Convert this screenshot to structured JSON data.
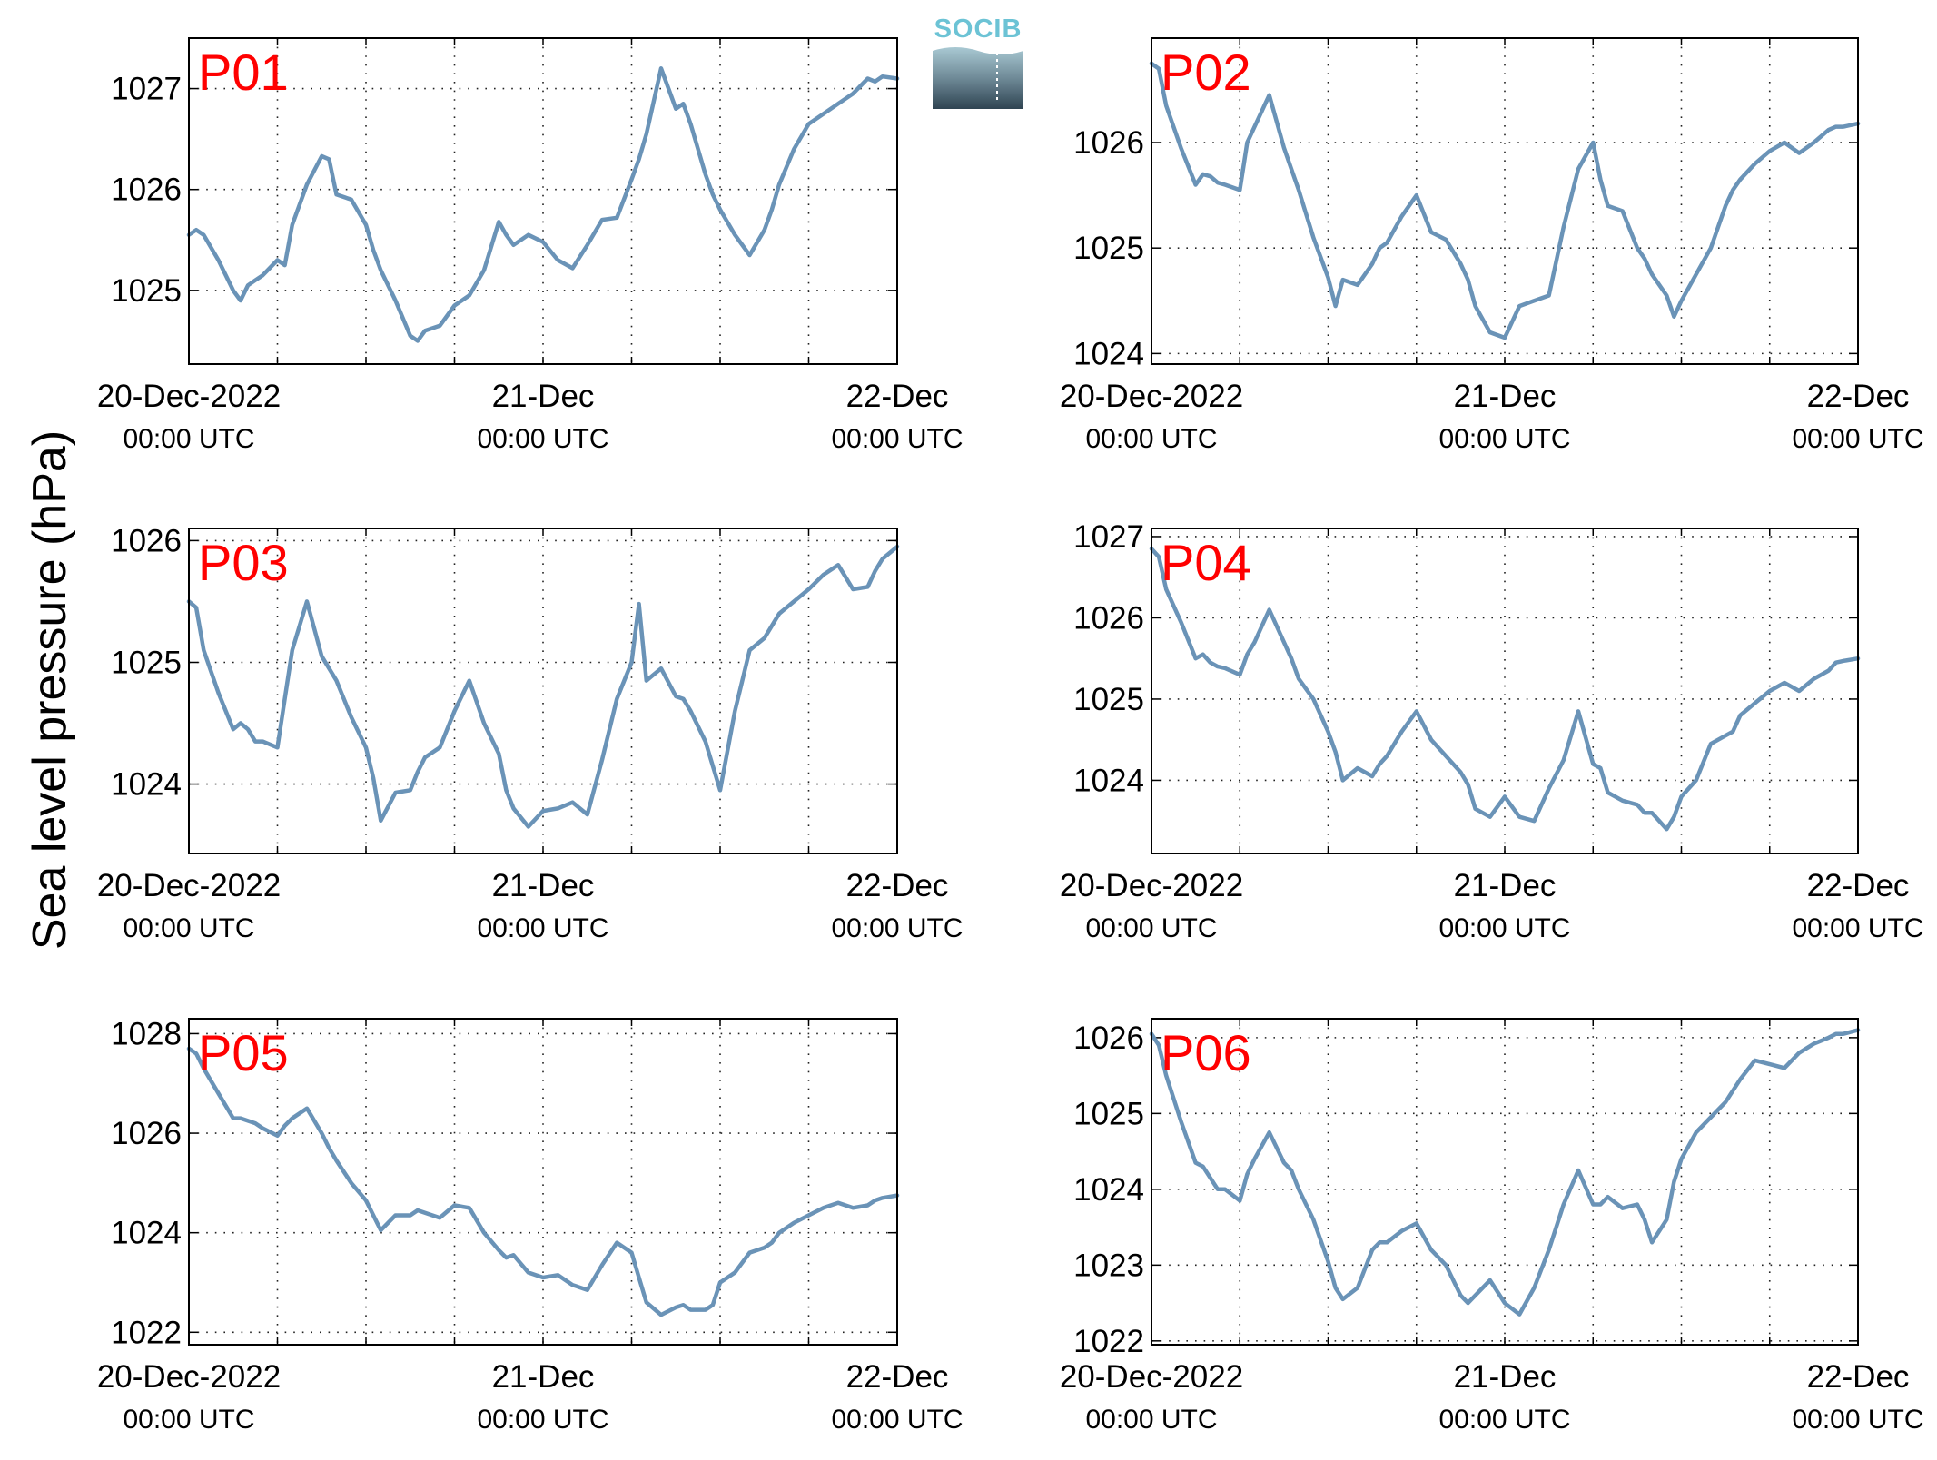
{
  "figure": {
    "ylabel": "Sea level pressure (hPa)",
    "logo_text": "SOCIB",
    "line_color": "#6a93b7",
    "label_color": "#ff0000",
    "grid": "dotted"
  },
  "chart_data": [
    {
      "type": "line",
      "title": "P01",
      "xtick_labels": [
        {
          "line1": "20-Dec-2022",
          "line2": "00:00 UTC"
        },
        {
          "line1": "21-Dec",
          "line2": "00:00 UTC"
        },
        {
          "line1": "22-Dec",
          "line2": "00:00 UTC"
        }
      ],
      "xlim": [
        0,
        48
      ],
      "ylim": [
        1024.27,
        1027.5
      ],
      "yticks": [
        1025,
        1026,
        1027
      ],
      "ytick_labels": [
        "1025",
        "1026",
        "1027"
      ],
      "x": [
        0,
        0.5,
        1,
        2,
        3,
        3.5,
        4,
        4.5,
        5,
        6,
        6.5,
        7,
        8,
        9,
        9.5,
        10,
        11,
        12,
        12.5,
        13,
        14,
        15,
        15.5,
        16,
        17,
        18,
        19,
        20,
        21,
        21.5,
        22,
        23,
        24,
        25,
        26,
        27,
        28,
        29,
        30,
        30.5,
        31,
        32,
        33,
        33.5,
        34,
        35,
        35.5,
        36,
        37,
        38,
        39,
        39.5,
        40,
        41,
        42,
        43,
        44,
        45,
        46,
        46.5,
        47,
        48
      ],
      "series": [
        {
          "values": [
            1025.55,
            1025.6,
            1025.55,
            1025.3,
            1025.0,
            1024.9,
            1025.05,
            1025.1,
            1025.15,
            1025.3,
            1025.25,
            1025.65,
            1026.05,
            1026.33,
            1026.3,
            1025.95,
            1025.9,
            1025.65,
            1025.4,
            1025.2,
            1024.9,
            1024.55,
            1024.5,
            1024.6,
            1024.65,
            1024.85,
            1024.95,
            1025.2,
            1025.68,
            1025.55,
            1025.45,
            1025.55,
            1025.48,
            1025.3,
            1025.22,
            1025.45,
            1025.7,
            1025.72,
            1026.1,
            1026.3,
            1026.55,
            1027.2,
            1026.8,
            1026.85,
            1026.65,
            1026.15,
            1025.95,
            1025.8,
            1025.55,
            1025.35,
            1025.6,
            1025.8,
            1026.05,
            1026.4,
            1026.65,
            1026.75,
            1026.85,
            1026.95,
            1027.1,
            1027.07,
            1027.12,
            1027.1
          ]
        }
      ]
    },
    {
      "type": "line",
      "title": "P02",
      "xtick_labels": [
        {
          "line1": "20-Dec-2022",
          "line2": "00:00 UTC"
        },
        {
          "line1": "21-Dec",
          "line2": "00:00 UTC"
        },
        {
          "line1": "22-Dec",
          "line2": "00:00 UTC"
        }
      ],
      "xlim": [
        0,
        48
      ],
      "ylim": [
        1023.9,
        1026.99
      ],
      "yticks": [
        1024,
        1025,
        1026
      ],
      "ytick_labels": [
        "1024",
        "1025",
        "1026"
      ],
      "x": [
        0,
        0.5,
        1,
        2,
        3,
        3.5,
        4,
        4.5,
        5,
        6,
        6.5,
        7,
        8,
        9,
        9.5,
        10,
        11,
        12,
        12.5,
        13,
        14,
        15,
        15.5,
        16,
        17,
        18,
        19,
        20,
        21,
        21.5,
        22,
        23,
        24,
        25,
        26,
        27,
        28,
        29,
        30,
        30.5,
        31,
        32,
        33,
        33.5,
        34,
        35,
        35.5,
        36,
        37,
        38,
        39,
        39.5,
        40,
        41,
        42,
        43,
        44,
        45,
        46,
        46.5,
        47,
        48
      ],
      "series": [
        {
          "values": [
            1026.75,
            1026.7,
            1026.35,
            1025.95,
            1025.6,
            1025.7,
            1025.68,
            1025.62,
            1025.6,
            1025.55,
            1026.0,
            1026.15,
            1026.45,
            1025.95,
            1025.75,
            1025.55,
            1025.1,
            1024.72,
            1024.45,
            1024.7,
            1024.65,
            1024.85,
            1025.0,
            1025.05,
            1025.3,
            1025.5,
            1025.15,
            1025.08,
            1024.85,
            1024.7,
            1024.45,
            1024.2,
            1024.15,
            1024.45,
            1024.5,
            1024.55,
            1025.2,
            1025.75,
            1026.0,
            1025.65,
            1025.4,
            1025.35,
            1025.0,
            1024.9,
            1024.75,
            1024.55,
            1024.35,
            1024.5,
            1024.75,
            1025.0,
            1025.4,
            1025.55,
            1025.65,
            1025.8,
            1025.92,
            1026.0,
            1025.9,
            1026.0,
            1026.12,
            1026.15,
            1026.15,
            1026.18
          ]
        }
      ]
    },
    {
      "type": "line",
      "title": "P03",
      "xtick_labels": [
        {
          "line1": "20-Dec-2022",
          "line2": "00:00 UTC"
        },
        {
          "line1": "21-Dec",
          "line2": "00:00 UTC"
        },
        {
          "line1": "22-Dec",
          "line2": "00:00 UTC"
        }
      ],
      "xlim": [
        0,
        48
      ],
      "ylim": [
        1023.43,
        1026.1
      ],
      "yticks": [
        1024,
        1025,
        1026
      ],
      "ytick_labels": [
        "1024",
        "1025",
        "1026"
      ],
      "x": [
        0,
        0.5,
        1,
        2,
        3,
        3.5,
        4,
        4.5,
        5,
        6,
        6.5,
        7,
        8,
        9,
        9.5,
        10,
        11,
        12,
        12.5,
        13,
        14,
        15,
        15.5,
        16,
        17,
        18,
        19,
        20,
        21,
        21.5,
        22,
        23,
        24,
        25,
        26,
        27,
        28,
        29,
        30,
        30.5,
        31,
        32,
        33,
        33.5,
        34,
        35,
        35.5,
        36,
        37,
        38,
        39,
        39.5,
        40,
        41,
        42,
        43,
        44,
        45,
        46,
        46.5,
        47,
        48
      ],
      "series": [
        {
          "values": [
            1025.5,
            1025.45,
            1025.1,
            1024.75,
            1024.45,
            1024.5,
            1024.45,
            1024.35,
            1024.35,
            1024.3,
            1024.7,
            1025.1,
            1025.5,
            1025.05,
            1024.95,
            1024.85,
            1024.55,
            1024.3,
            1024.05,
            1023.7,
            1023.93,
            1023.95,
            1024.1,
            1024.22,
            1024.3,
            1024.6,
            1024.85,
            1024.5,
            1024.25,
            1023.95,
            1023.8,
            1023.65,
            1023.78,
            1023.8,
            1023.85,
            1023.75,
            1024.2,
            1024.7,
            1025.0,
            1025.48,
            1024.85,
            1024.95,
            1024.72,
            1024.7,
            1024.6,
            1024.35,
            1024.15,
            1023.95,
            1024.6,
            1025.1,
            1025.2,
            1025.3,
            1025.4,
            1025.5,
            1025.6,
            1025.72,
            1025.8,
            1025.6,
            1025.62,
            1025.75,
            1025.85,
            1025.95
          ]
        }
      ]
    },
    {
      "type": "line",
      "title": "P04",
      "xtick_labels": [
        {
          "line1": "20-Dec-2022",
          "line2": "00:00 UTC"
        },
        {
          "line1": "21-Dec",
          "line2": "00:00 UTC"
        },
        {
          "line1": "22-Dec",
          "line2": "00:00 UTC"
        }
      ],
      "xlim": [
        0,
        48
      ],
      "ylim": [
        1023.1,
        1027.1
      ],
      "yticks": [
        1024,
        1025,
        1026,
        1027
      ],
      "ytick_labels": [
        "1024",
        "1025",
        "1026",
        "1027"
      ],
      "x": [
        0,
        0.5,
        1,
        2,
        3,
        3.5,
        4,
        4.5,
        5,
        6,
        6.5,
        7,
        8,
        9,
        9.5,
        10,
        11,
        12,
        12.5,
        13,
        14,
        15,
        15.5,
        16,
        17,
        18,
        19,
        20,
        21,
        21.5,
        22,
        23,
        24,
        25,
        26,
        27,
        28,
        29,
        30,
        30.5,
        31,
        32,
        33,
        33.5,
        34,
        35,
        35.5,
        36,
        37,
        38,
        39,
        39.5,
        40,
        41,
        42,
        43,
        44,
        45,
        46,
        46.5,
        47,
        48
      ],
      "series": [
        {
          "values": [
            1026.85,
            1026.75,
            1026.35,
            1025.95,
            1025.5,
            1025.55,
            1025.45,
            1025.4,
            1025.38,
            1025.3,
            1025.55,
            1025.7,
            1026.1,
            1025.7,
            1025.5,
            1025.25,
            1025.0,
            1024.6,
            1024.35,
            1024.0,
            1024.15,
            1024.05,
            1024.2,
            1024.3,
            1024.6,
            1024.85,
            1024.5,
            1024.3,
            1024.1,
            1023.95,
            1023.65,
            1023.55,
            1023.8,
            1023.55,
            1023.5,
            1023.9,
            1024.25,
            1024.85,
            1024.2,
            1024.15,
            1023.85,
            1023.75,
            1023.7,
            1023.6,
            1023.6,
            1023.4,
            1023.55,
            1023.8,
            1024.0,
            1024.45,
            1024.55,
            1024.6,
            1024.8,
            1024.95,
            1025.1,
            1025.2,
            1025.1,
            1025.25,
            1025.35,
            1025.45,
            1025.47,
            1025.5
          ]
        }
      ]
    },
    {
      "type": "line",
      "title": "P05",
      "xtick_labels": [
        {
          "line1": "20-Dec-2022",
          "line2": "00:00 UTC"
        },
        {
          "line1": "21-Dec",
          "line2": "00:00 UTC"
        },
        {
          "line1": "22-Dec",
          "line2": "00:00 UTC"
        }
      ],
      "xlim": [
        0,
        48
      ],
      "ylim": [
        1021.75,
        1028.3
      ],
      "yticks": [
        1022,
        1024,
        1026,
        1028
      ],
      "ytick_labels": [
        "1022",
        "1024",
        "1026",
        "1028"
      ],
      "x": [
        0,
        0.5,
        1,
        2,
        3,
        3.5,
        4,
        4.5,
        5,
        6,
        6.5,
        7,
        8,
        9,
        9.5,
        10,
        11,
        12,
        12.5,
        13,
        14,
        15,
        15.5,
        16,
        17,
        18,
        19,
        20,
        21,
        21.5,
        22,
        23,
        24,
        25,
        26,
        27,
        28,
        29,
        30,
        30.5,
        31,
        32,
        33,
        33.5,
        34,
        35,
        35.5,
        36,
        37,
        38,
        39,
        39.5,
        40,
        41,
        42,
        43,
        44,
        45,
        46,
        46.5,
        47,
        48
      ],
      "series": [
        {
          "values": [
            1027.7,
            1027.6,
            1027.3,
            1026.8,
            1026.3,
            1026.3,
            1026.25,
            1026.2,
            1026.1,
            1025.95,
            1026.15,
            1026.3,
            1026.5,
            1026.0,
            1025.7,
            1025.45,
            1025.0,
            1024.65,
            1024.35,
            1024.05,
            1024.35,
            1024.35,
            1024.45,
            1024.4,
            1024.3,
            1024.55,
            1024.5,
            1024.0,
            1023.65,
            1023.5,
            1023.55,
            1023.2,
            1023.1,
            1023.15,
            1022.95,
            1022.85,
            1023.35,
            1023.8,
            1023.6,
            1023.1,
            1022.6,
            1022.35,
            1022.5,
            1022.55,
            1022.45,
            1022.45,
            1022.55,
            1023.0,
            1023.2,
            1023.6,
            1023.7,
            1023.8,
            1024.0,
            1024.2,
            1024.35,
            1024.5,
            1024.6,
            1024.5,
            1024.55,
            1024.65,
            1024.7,
            1024.75
          ]
        }
      ]
    },
    {
      "type": "line",
      "title": "P06",
      "xtick_labels": [
        {
          "line1": "20-Dec-2022",
          "line2": "00:00 UTC"
        },
        {
          "line1": "21-Dec",
          "line2": "00:00 UTC"
        },
        {
          "line1": "22-Dec",
          "line2": "00:00 UTC"
        }
      ],
      "xlim": [
        0,
        48
      ],
      "ylim": [
        1021.95,
        1026.25
      ],
      "yticks": [
        1022,
        1023,
        1024,
        1025,
        1026
      ],
      "ytick_labels": [
        "1022",
        "1023",
        "1024",
        "1025",
        "1026"
      ],
      "x": [
        0,
        0.5,
        1,
        2,
        3,
        3.5,
        4,
        4.5,
        5,
        6,
        6.5,
        7,
        8,
        9,
        9.5,
        10,
        11,
        12,
        12.5,
        13,
        14,
        15,
        15.5,
        16,
        17,
        18,
        19,
        20,
        21,
        21.5,
        22,
        23,
        24,
        25,
        26,
        27,
        28,
        29,
        30,
        30.5,
        31,
        32,
        33,
        33.5,
        34,
        35,
        35.5,
        36,
        37,
        38,
        39,
        39.5,
        40,
        41,
        42,
        43,
        44,
        45,
        46,
        46.5,
        47,
        48
      ],
      "series": [
        {
          "values": [
            1026.05,
            1025.9,
            1025.5,
            1024.9,
            1024.35,
            1024.3,
            1024.15,
            1024.0,
            1024.0,
            1023.85,
            1024.2,
            1024.4,
            1024.75,
            1024.35,
            1024.25,
            1024.0,
            1023.6,
            1023.05,
            1022.7,
            1022.55,
            1022.7,
            1023.2,
            1023.3,
            1023.3,
            1023.45,
            1023.55,
            1023.2,
            1023.0,
            1022.6,
            1022.5,
            1022.6,
            1022.8,
            1022.5,
            1022.35,
            1022.7,
            1023.2,
            1023.8,
            1024.25,
            1023.8,
            1023.8,
            1023.9,
            1023.75,
            1023.8,
            1023.6,
            1023.3,
            1023.6,
            1024.1,
            1024.4,
            1024.75,
            1024.95,
            1025.15,
            1025.3,
            1025.45,
            1025.7,
            1025.65,
            1025.6,
            1025.8,
            1025.92,
            1026.0,
            1026.05,
            1026.05,
            1026.1
          ]
        }
      ]
    }
  ]
}
